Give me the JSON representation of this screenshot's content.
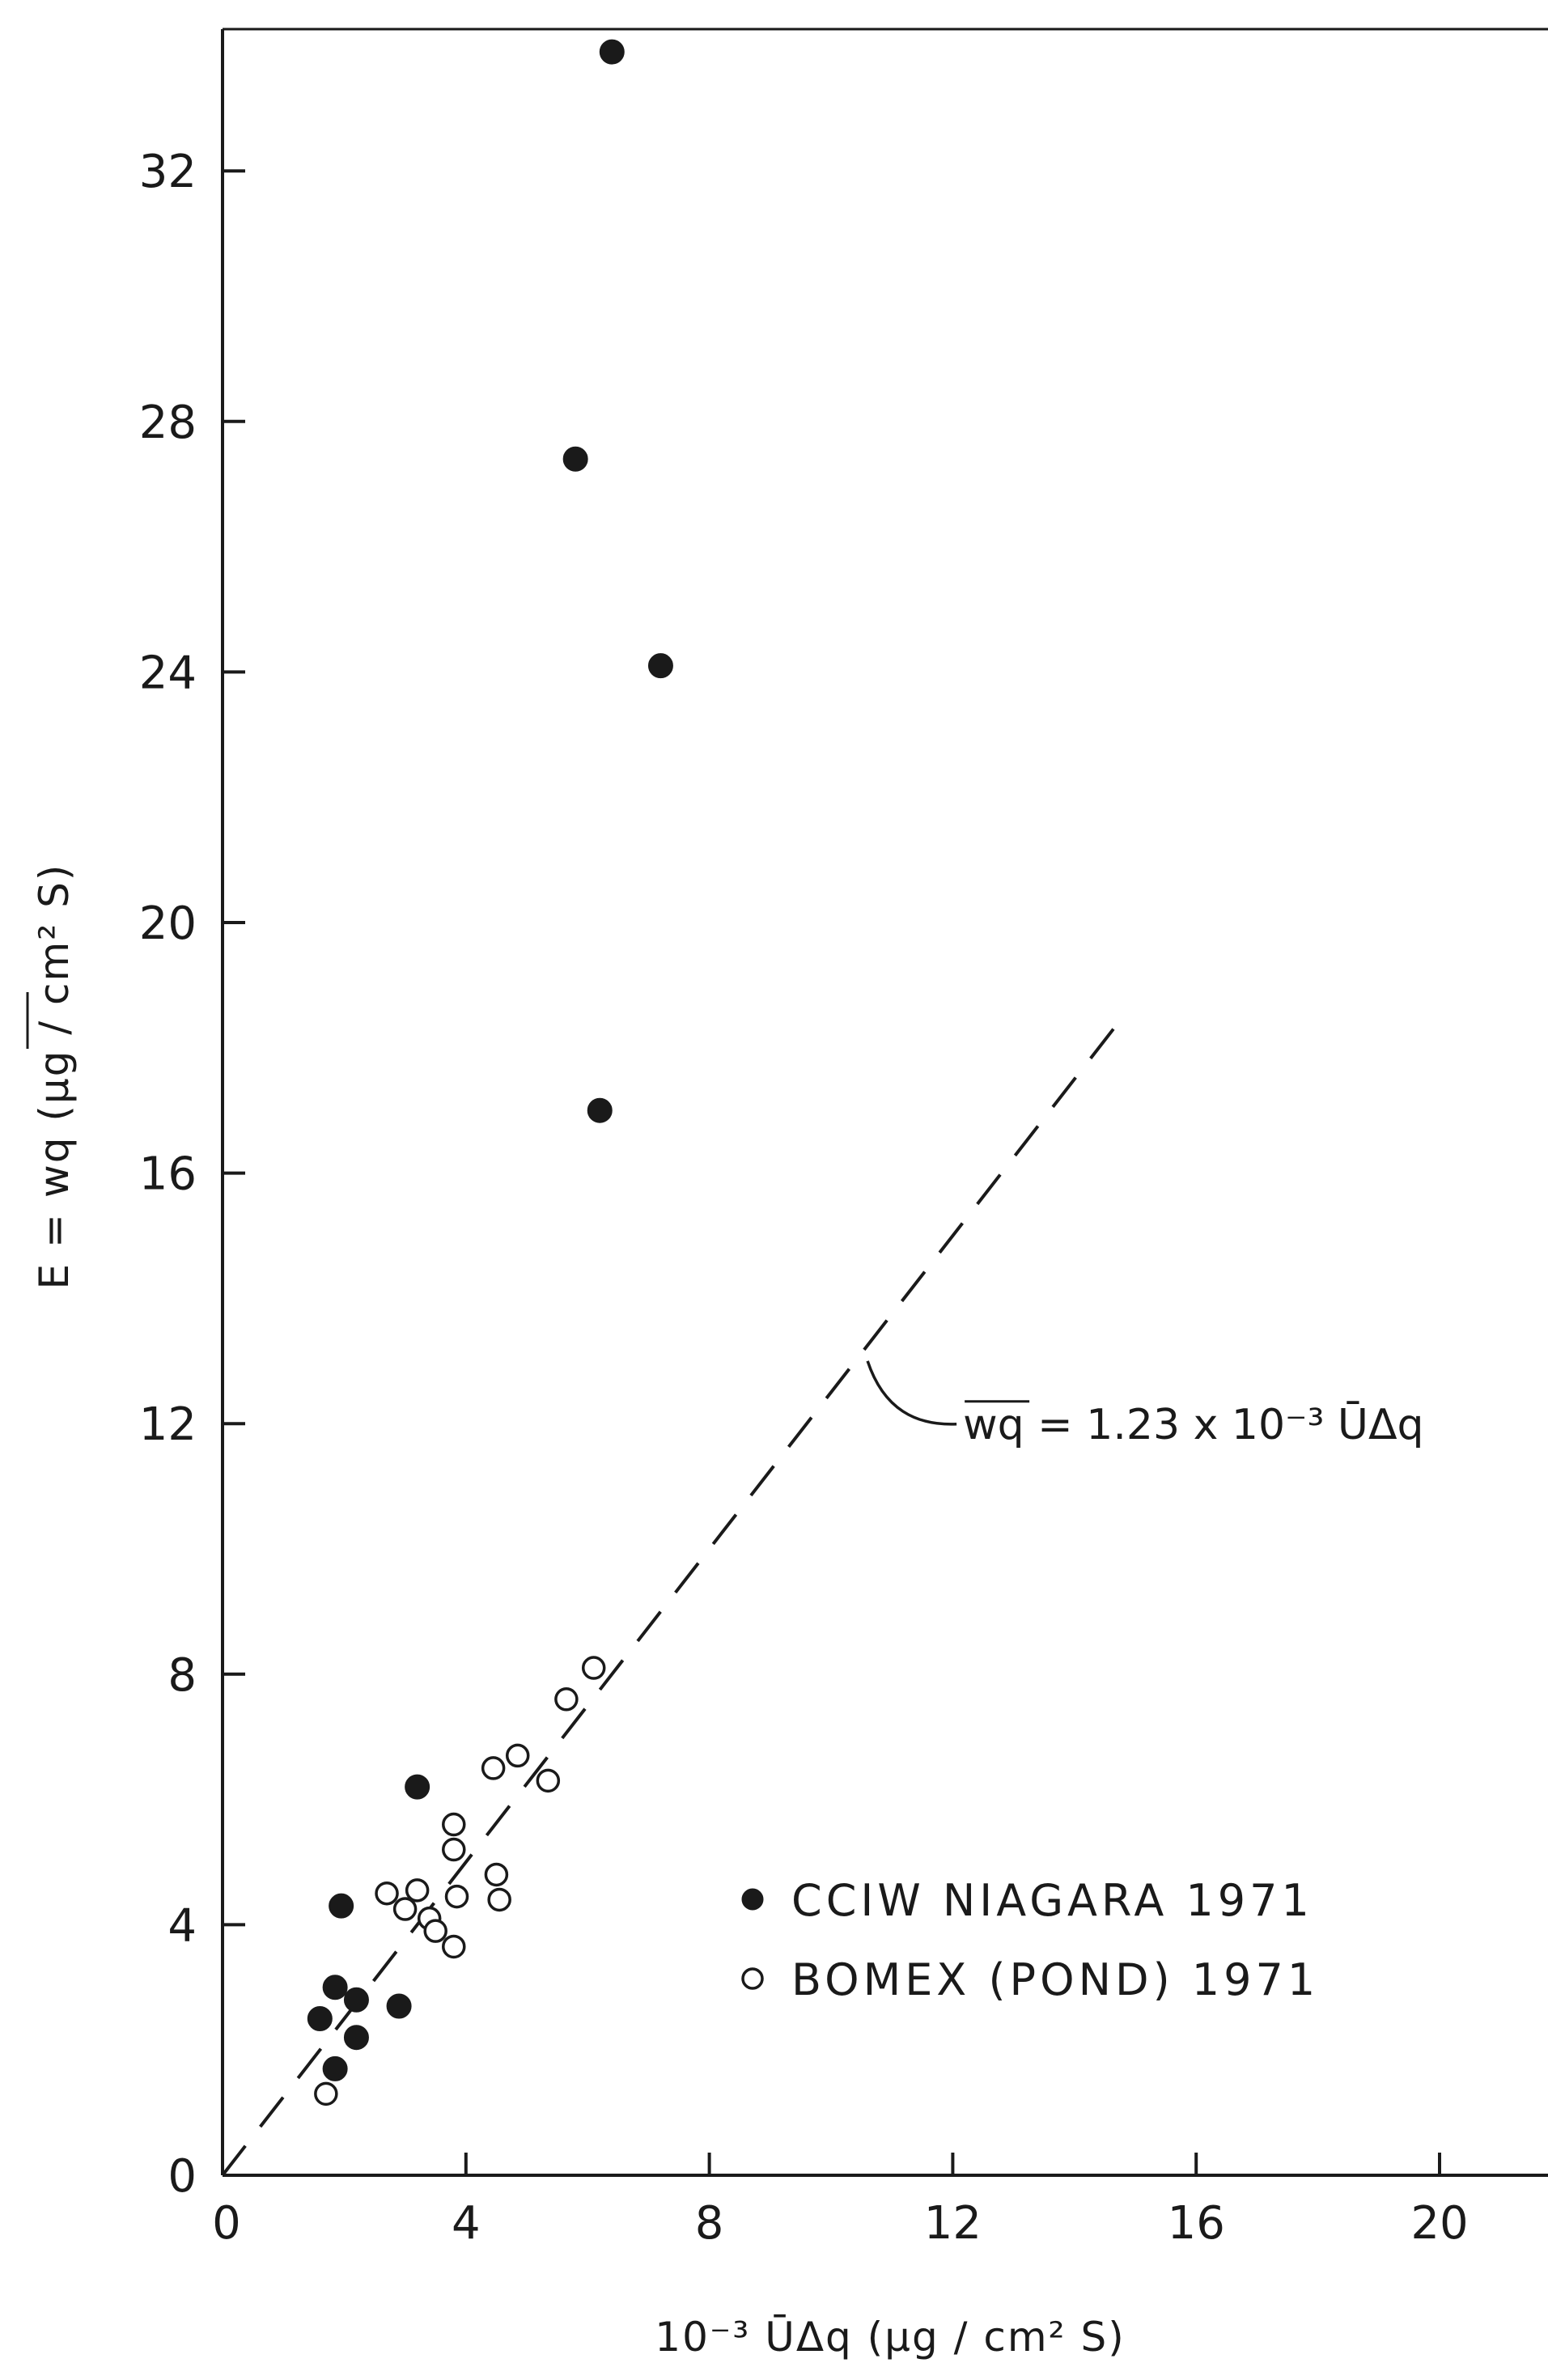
{
  "chart_data": {
    "type": "scatter",
    "xlabel": "10⁻³ ŪΔq (μg / cm² S)",
    "ylabel": "E = wq (μg / cm² S)",
    "xlim": [
      0,
      21.5
    ],
    "ylim": [
      0,
      34
    ],
    "x_ticks": [
      "0",
      "4",
      "8",
      "12",
      "16",
      "20"
    ],
    "y_ticks": [
      "0",
      "4",
      "8",
      "12",
      "16",
      "20",
      "24",
      "28",
      "32"
    ],
    "grid": false,
    "legend_position": "lower-right",
    "series": [
      {
        "name": "CCIW NIAGARA 1971",
        "marker": "filled-circle",
        "color": "#1a1a1a",
        "points": [
          {
            "x": 6.4,
            "y": 33.9
          },
          {
            "x": 5.8,
            "y": 27.4
          },
          {
            "x": 7.2,
            "y": 24.1
          },
          {
            "x": 6.2,
            "y": 17.0
          },
          {
            "x": 3.2,
            "y": 6.2
          },
          {
            "x": 1.95,
            "y": 4.3
          },
          {
            "x": 1.85,
            "y": 3.0
          },
          {
            "x": 1.6,
            "y": 2.5
          },
          {
            "x": 2.2,
            "y": 2.8
          },
          {
            "x": 2.9,
            "y": 2.7
          },
          {
            "x": 2.2,
            "y": 2.2
          },
          {
            "x": 1.85,
            "y": 1.7
          }
        ]
      },
      {
        "name": "BOMEX (POND) 1971",
        "marker": "open-circle",
        "color": "#1a1a1a",
        "points": [
          {
            "x": 6.1,
            "y": 8.1
          },
          {
            "x": 5.65,
            "y": 7.6
          },
          {
            "x": 4.85,
            "y": 6.7
          },
          {
            "x": 4.45,
            "y": 6.5
          },
          {
            "x": 5.35,
            "y": 6.3
          },
          {
            "x": 3.8,
            "y": 5.6
          },
          {
            "x": 3.8,
            "y": 5.2
          },
          {
            "x": 4.5,
            "y": 4.8
          },
          {
            "x": 2.7,
            "y": 4.5
          },
          {
            "x": 3.2,
            "y": 4.55
          },
          {
            "x": 3.0,
            "y": 4.25
          },
          {
            "x": 3.85,
            "y": 4.45
          },
          {
            "x": 4.55,
            "y": 4.4
          },
          {
            "x": 3.4,
            "y": 4.1
          },
          {
            "x": 3.5,
            "y": 3.9
          },
          {
            "x": 3.8,
            "y": 3.65
          },
          {
            "x": 1.7,
            "y": 1.3
          }
        ]
      }
    ],
    "fit_line": {
      "equation": "wq = 1.23 x 10⁻³ ŪΔq",
      "style": "dashed",
      "x": [
        0,
        14.8
      ],
      "y": [
        0,
        18.5
      ]
    }
  }
}
